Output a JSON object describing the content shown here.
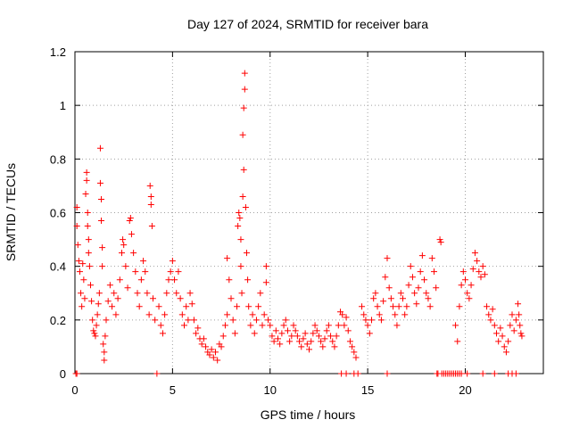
{
  "chart_data": {
    "type": "scatter",
    "title": "Day 127 of 2024, SRMTID for receiver bara",
    "xlabel": "GPS time / hours",
    "ylabel": "SRMTID / TECUs",
    "xlim": [
      0,
      24
    ],
    "ylim": [
      0,
      1.2
    ],
    "xticks": [
      0,
      5,
      10,
      15,
      20
    ],
    "xtick_labels": [
      "0",
      "5",
      "10",
      "15",
      "20"
    ],
    "yticks": [
      0,
      0.2,
      0.4,
      0.6,
      0.8,
      1.0,
      1.2
    ],
    "ytick_labels": [
      "0",
      "0.2",
      "0.4",
      "0.6",
      "0.8",
      "1",
      "1.2"
    ],
    "grid": true,
    "marker": "+",
    "marker_color": "#ff0000",
    "series": [
      {
        "name": "SRMTID",
        "points": [
          [
            0.1,
            0.62
          ],
          [
            0.1,
            0.55
          ],
          [
            0.15,
            0.48
          ],
          [
            0.2,
            0.42
          ],
          [
            0.25,
            0.38
          ],
          [
            0.3,
            0.3
          ],
          [
            0.35,
            0.25
          ],
          [
            0.4,
            0.41
          ],
          [
            0.45,
            0.35
          ],
          [
            0.5,
            0.28
          ],
          [
            0.55,
            0.67
          ],
          [
            0.6,
            0.72
          ],
          [
            0.6,
            0.75
          ],
          [
            0.65,
            0.6
          ],
          [
            0.65,
            0.55
          ],
          [
            0.7,
            0.5
          ],
          [
            0.7,
            0.45
          ],
          [
            0.75,
            0.4
          ],
          [
            0.8,
            0.33
          ],
          [
            0.85,
            0.27
          ],
          [
            0.9,
            0.2
          ],
          [
            0.95,
            0.16
          ],
          [
            1.0,
            0.15
          ],
          [
            1.05,
            0.14
          ],
          [
            1.1,
            0.18
          ],
          [
            1.15,
            0.22
          ],
          [
            1.2,
            0.26
          ],
          [
            1.25,
            0.3
          ],
          [
            1.3,
            0.84
          ],
          [
            1.3,
            0.71
          ],
          [
            1.35,
            0.65
          ],
          [
            1.35,
            0.57
          ],
          [
            1.4,
            0.47
          ],
          [
            1.4,
            0.4
          ],
          [
            1.45,
            0.11
          ],
          [
            1.5,
            0.08
          ],
          [
            1.5,
            0.05
          ],
          [
            1.55,
            0.14
          ],
          [
            1.6,
            0.2
          ],
          [
            1.7,
            0.27
          ],
          [
            1.8,
            0.33
          ],
          [
            1.9,
            0.25
          ],
          [
            2.0,
            0.3
          ],
          [
            2.1,
            0.22
          ],
          [
            2.2,
            0.28
          ],
          [
            2.3,
            0.35
          ],
          [
            2.4,
            0.45
          ],
          [
            2.45,
            0.5
          ],
          [
            2.5,
            0.48
          ],
          [
            2.6,
            0.4
          ],
          [
            2.7,
            0.32
          ],
          [
            2.8,
            0.57
          ],
          [
            2.85,
            0.58
          ],
          [
            2.9,
            0.52
          ],
          [
            3.0,
            0.45
          ],
          [
            3.1,
            0.38
          ],
          [
            3.2,
            0.3
          ],
          [
            3.3,
            0.25
          ],
          [
            3.4,
            0.35
          ],
          [
            3.5,
            0.42
          ],
          [
            3.6,
            0.38
          ],
          [
            3.7,
            0.3
          ],
          [
            3.8,
            0.22
          ],
          [
            3.85,
            0.7
          ],
          [
            3.9,
            0.66
          ],
          [
            3.9,
            0.63
          ],
          [
            3.95,
            0.55
          ],
          [
            4.0,
            0.28
          ],
          [
            4.1,
            0.2
          ],
          [
            4.2,
            0.0
          ],
          [
            4.3,
            0.25
          ],
          [
            4.4,
            0.18
          ],
          [
            4.5,
            0.15
          ],
          [
            4.6,
            0.22
          ],
          [
            4.7,
            0.3
          ],
          [
            4.8,
            0.35
          ],
          [
            4.9,
            0.38
          ],
          [
            5.0,
            0.42
          ],
          [
            5.1,
            0.35
          ],
          [
            5.2,
            0.3
          ],
          [
            5.3,
            0.38
          ],
          [
            5.4,
            0.28
          ],
          [
            5.5,
            0.22
          ],
          [
            5.6,
            0.18
          ],
          [
            5.7,
            0.25
          ],
          [
            5.8,
            0.2
          ],
          [
            5.9,
            0.3
          ],
          [
            6.0,
            0.26
          ],
          [
            6.1,
            0.2
          ],
          [
            6.2,
            0.15
          ],
          [
            6.3,
            0.17
          ],
          [
            6.4,
            0.13
          ],
          [
            6.5,
            0.11
          ],
          [
            6.6,
            0.13
          ],
          [
            6.7,
            0.1
          ],
          [
            6.8,
            0.08
          ],
          [
            6.9,
            0.07
          ],
          [
            7.0,
            0.09
          ],
          [
            7.1,
            0.06
          ],
          [
            7.2,
            0.08
          ],
          [
            7.3,
            0.05
          ],
          [
            7.4,
            0.11
          ],
          [
            7.5,
            0.1
          ],
          [
            7.6,
            0.14
          ],
          [
            7.7,
            0.18
          ],
          [
            7.8,
            0.22
          ],
          [
            7.8,
            0.43
          ],
          [
            7.9,
            0.35
          ],
          [
            8.0,
            0.28
          ],
          [
            8.1,
            0.2
          ],
          [
            8.2,
            0.15
          ],
          [
            8.3,
            0.25
          ],
          [
            8.35,
            0.55
          ],
          [
            8.4,
            0.6
          ],
          [
            8.45,
            0.58
          ],
          [
            8.5,
            0.5
          ],
          [
            8.5,
            0.4
          ],
          [
            8.55,
            0.3
          ],
          [
            8.6,
            0.89
          ],
          [
            8.6,
            0.66
          ],
          [
            8.65,
            0.99
          ],
          [
            8.65,
            0.76
          ],
          [
            8.7,
            1.06
          ],
          [
            8.7,
            1.12
          ],
          [
            8.75,
            0.62
          ],
          [
            8.8,
            0.45
          ],
          [
            8.85,
            0.35
          ],
          [
            8.9,
            0.25
          ],
          [
            9.0,
            0.18
          ],
          [
            9.1,
            0.22
          ],
          [
            9.2,
            0.15
          ],
          [
            9.3,
            0.2
          ],
          [
            9.4,
            0.25
          ],
          [
            9.5,
            0.3
          ],
          [
            9.6,
            0.18
          ],
          [
            9.7,
            0.22
          ],
          [
            9.8,
            0.4
          ],
          [
            9.8,
            0.34
          ],
          [
            9.9,
            0.2
          ],
          [
            10.0,
            0.18
          ],
          [
            10.1,
            0.14
          ],
          [
            10.2,
            0.12
          ],
          [
            10.3,
            0.16
          ],
          [
            10.4,
            0.13
          ],
          [
            10.5,
            0.11
          ],
          [
            10.6,
            0.15
          ],
          [
            10.7,
            0.18
          ],
          [
            10.8,
            0.2
          ],
          [
            10.9,
            0.16
          ],
          [
            11.0,
            0.12
          ],
          [
            11.1,
            0.14
          ],
          [
            11.2,
            0.18
          ],
          [
            11.3,
            0.16
          ],
          [
            11.4,
            0.14
          ],
          [
            11.5,
            0.12
          ],
          [
            11.6,
            0.1
          ],
          [
            11.7,
            0.13
          ],
          [
            11.8,
            0.15
          ],
          [
            11.9,
            0.11
          ],
          [
            12.0,
            0.09
          ],
          [
            12.1,
            0.12
          ],
          [
            12.2,
            0.15
          ],
          [
            12.3,
            0.18
          ],
          [
            12.4,
            0.16
          ],
          [
            12.5,
            0.14
          ],
          [
            12.6,
            0.12
          ],
          [
            12.7,
            0.1
          ],
          [
            12.8,
            0.13
          ],
          [
            12.9,
            0.16
          ],
          [
            13.0,
            0.18
          ],
          [
            13.1,
            0.14
          ],
          [
            13.2,
            0.12
          ],
          [
            13.3,
            0.1
          ],
          [
            13.4,
            0.14
          ],
          [
            13.5,
            0.18
          ],
          [
            13.6,
            0.23
          ],
          [
            13.7,
            0.22
          ],
          [
            13.8,
            0.18
          ],
          [
            13.9,
            0.21
          ],
          [
            14.0,
            0.16
          ],
          [
            14.1,
            0.12
          ],
          [
            14.2,
            0.1
          ],
          [
            14.3,
            0.08
          ],
          [
            14.4,
            0.06
          ],
          [
            13.65,
            0.0
          ],
          [
            13.9,
            0.0
          ],
          [
            14.3,
            0.0
          ],
          [
            14.5,
            0.0
          ],
          [
            14.7,
            0.25
          ],
          [
            14.8,
            0.22
          ],
          [
            14.9,
            0.2
          ],
          [
            15.0,
            0.18
          ],
          [
            15.1,
            0.15
          ],
          [
            15.2,
            0.2
          ],
          [
            15.3,
            0.28
          ],
          [
            15.4,
            0.3
          ],
          [
            15.5,
            0.25
          ],
          [
            15.6,
            0.22
          ],
          [
            15.7,
            0.2
          ],
          [
            15.8,
            0.27
          ],
          [
            15.9,
            0.36
          ],
          [
            16.0,
            0.43
          ],
          [
            16.0,
            0.0
          ],
          [
            16.1,
            0.32
          ],
          [
            16.2,
            0.28
          ],
          [
            16.3,
            0.25
          ],
          [
            16.4,
            0.22
          ],
          [
            16.5,
            0.18
          ],
          [
            16.6,
            0.25
          ],
          [
            16.7,
            0.3
          ],
          [
            16.8,
            0.28
          ],
          [
            16.9,
            0.22
          ],
          [
            17.0,
            0.25
          ],
          [
            17.1,
            0.33
          ],
          [
            17.2,
            0.4
          ],
          [
            17.3,
            0.36
          ],
          [
            17.4,
            0.3
          ],
          [
            17.5,
            0.26
          ],
          [
            17.6,
            0.32
          ],
          [
            17.7,
            0.38
          ],
          [
            17.8,
            0.44
          ],
          [
            17.9,
            0.35
          ],
          [
            18.0,
            0.3
          ],
          [
            18.1,
            0.28
          ],
          [
            18.2,
            0.25
          ],
          [
            18.3,
            0.43
          ],
          [
            18.4,
            0.38
          ],
          [
            18.5,
            0.32
          ],
          [
            18.55,
            0.0
          ],
          [
            18.6,
            0.0
          ],
          [
            18.7,
            0.5
          ],
          [
            18.75,
            0.49
          ],
          [
            18.8,
            0.0
          ],
          [
            18.9,
            0.0
          ],
          [
            19.0,
            0.0
          ],
          [
            19.1,
            0.0
          ],
          [
            19.2,
            0.0
          ],
          [
            19.3,
            0.0
          ],
          [
            19.4,
            0.0
          ],
          [
            19.5,
            0.0
          ],
          [
            19.6,
            0.0
          ],
          [
            19.7,
            0.0
          ],
          [
            19.8,
            0.0
          ],
          [
            19.5,
            0.18
          ],
          [
            19.6,
            0.12
          ],
          [
            19.7,
            0.25
          ],
          [
            19.8,
            0.33
          ],
          [
            19.9,
            0.38
          ],
          [
            20.0,
            0.35
          ],
          [
            20.1,
            0.3
          ],
          [
            20.2,
            0.28
          ],
          [
            20.3,
            0.33
          ],
          [
            20.4,
            0.39
          ],
          [
            20.5,
            0.45
          ],
          [
            20.6,
            0.42
          ],
          [
            20.7,
            0.38
          ],
          [
            20.8,
            0.36
          ],
          [
            20.9,
            0.4
          ],
          [
            21.0,
            0.37
          ],
          [
            21.1,
            0.25
          ],
          [
            21.2,
            0.22
          ],
          [
            21.3,
            0.2
          ],
          [
            21.4,
            0.24
          ],
          [
            21.5,
            0.18
          ],
          [
            21.6,
            0.15
          ],
          [
            21.7,
            0.12
          ],
          [
            21.8,
            0.17
          ],
          [
            21.9,
            0.14
          ],
          [
            22.0,
            0.1
          ],
          [
            22.1,
            0.08
          ],
          [
            22.2,
            0.12
          ],
          [
            22.3,
            0.18
          ],
          [
            22.4,
            0.22
          ],
          [
            22.5,
            0.16
          ],
          [
            22.6,
            0.2
          ],
          [
            22.7,
            0.26
          ],
          [
            22.75,
            0.22
          ],
          [
            22.8,
            0.18
          ],
          [
            22.85,
            0.15
          ],
          [
            22.9,
            0.14
          ],
          [
            20.1,
            0.0
          ],
          [
            20.9,
            0.0
          ],
          [
            21.5,
            0.0
          ],
          [
            22.2,
            0.0
          ],
          [
            22.4,
            0.0
          ],
          [
            22.6,
            0.0
          ],
          [
            0.05,
            0.0
          ],
          [
            0.1,
            0.0
          ]
        ]
      }
    ]
  }
}
